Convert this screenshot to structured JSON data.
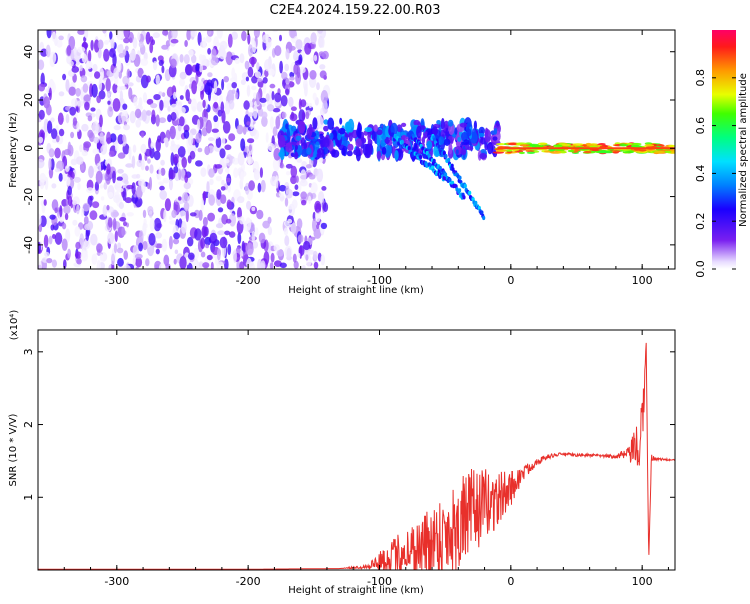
{
  "title": "C2E4.2024.159.22.00.R03",
  "colors": {
    "series": "#e8302b",
    "axis": "#000000",
    "scatter_gradient": [
      "#ffffff",
      "#d8c4ff",
      "#a46cff",
      "#7a20f0",
      "#2000ff",
      "#0060ff",
      "#00d0ff",
      "#00ff66",
      "#e8ff00",
      "#ff9900",
      "#ff0033"
    ]
  },
  "chart_data": [
    {
      "type": "heatmap",
      "name": "spectrogram",
      "xlabel": "Height of straight line (km)",
      "ylabel": "Frequency (Hz)",
      "xlim": [
        -360,
        125
      ],
      "ylim": [
        -50,
        49
      ],
      "xticks": [
        -300,
        -200,
        -100,
        0,
        100
      ],
      "yticks": [
        -40,
        -20,
        0,
        20,
        40
      ],
      "colorbar": {
        "label": "Normalized spectral amplitude",
        "range": [
          0,
          1
        ],
        "ticks": [
          "0.0",
          "0.2",
          "0.4",
          "0.6",
          "0.8"
        ],
        "colormap": "rainbow"
      },
      "regions": [
        {
          "x_range": [
            -360,
            -140
          ],
          "y_range": [
            -50,
            49
          ],
          "amplitude": [
            0.01,
            0.22
          ]
        },
        {
          "x_range": [
            -175,
            -10
          ],
          "y_range": [
            -5,
            10
          ],
          "amplitude": [
            0.1,
            0.4
          ]
        },
        {
          "x_range": [
            -10,
            125
          ],
          "y_range": [
            -2,
            2
          ],
          "amplitude": [
            0.6,
            0.95
          ]
        }
      ]
    },
    {
      "type": "line",
      "name": "snr",
      "xlabel": "Height of straight line (km)",
      "ylabel": "SNR (10 * V/V)",
      "y_multiplier": "(x10⁴)",
      "xlim": [
        -360,
        125
      ],
      "ylim": [
        0,
        3.3
      ],
      "xticks": [
        -300,
        -200,
        -100,
        0,
        100
      ],
      "yticks": [
        1,
        2,
        3
      ],
      "x": [
        -360,
        -300,
        -200,
        -130,
        -110,
        -90,
        -80,
        -70,
        -60,
        -50,
        -40,
        -30,
        -20,
        -10,
        0,
        10,
        20,
        30,
        40,
        50,
        60,
        70,
        80,
        90,
        95,
        100,
        103,
        105,
        107,
        110,
        125
      ],
      "values": [
        0.01,
        0.01,
        0.01,
        0.02,
        0.05,
        0.2,
        0.3,
        0.35,
        0.45,
        0.55,
        0.7,
        0.85,
        0.95,
        1.0,
        1.15,
        1.35,
        1.5,
        1.57,
        1.6,
        1.58,
        1.58,
        1.57,
        1.57,
        1.6,
        1.7,
        1.8,
        3.2,
        0.1,
        1.55,
        1.53,
        1.51
      ],
      "noise": [
        0,
        0,
        0,
        0,
        0.03,
        0.25,
        0.35,
        0.4,
        0.55,
        0.6,
        0.65,
        0.6,
        0.5,
        0.4,
        0.25,
        0.1,
        0.05,
        0.03,
        0.02,
        0.02,
        0.02,
        0.02,
        0.03,
        0.1,
        0.3,
        0.6,
        0,
        0,
        0.05,
        0.02,
        0.01
      ]
    }
  ]
}
